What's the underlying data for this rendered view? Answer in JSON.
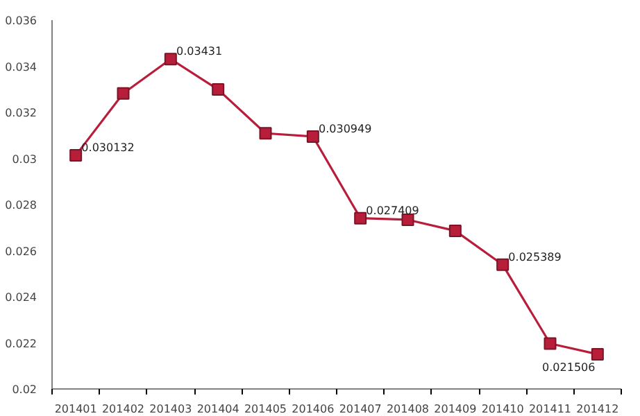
{
  "chart_data": {
    "type": "line",
    "categories": [
      "201401",
      "201402",
      "201403",
      "201404",
      "201405",
      "201406",
      "201407",
      "201408",
      "201409",
      "201410",
      "201411",
      "201412"
    ],
    "series": [
      {
        "color": "#b81d3a",
        "values": [
          0.030132,
          0.03282,
          0.03431,
          0.03299,
          0.03109,
          0.030949,
          0.027409,
          0.02734,
          0.02686,
          0.025389,
          0.02197,
          0.021506
        ],
        "value_labels": [
          "0.030132",
          null,
          "0.03431",
          null,
          null,
          "0.030949",
          "0.027409",
          null,
          null,
          "0.025389",
          null,
          "0.021506"
        ]
      }
    ],
    "ylim": [
      0.02,
      0.036
    ],
    "yticks": [
      0.02,
      0.022,
      0.024,
      0.026,
      0.028,
      0.03,
      0.032,
      0.034,
      0.036
    ],
    "marker": "square",
    "line_style": "solid",
    "grid": false
  }
}
